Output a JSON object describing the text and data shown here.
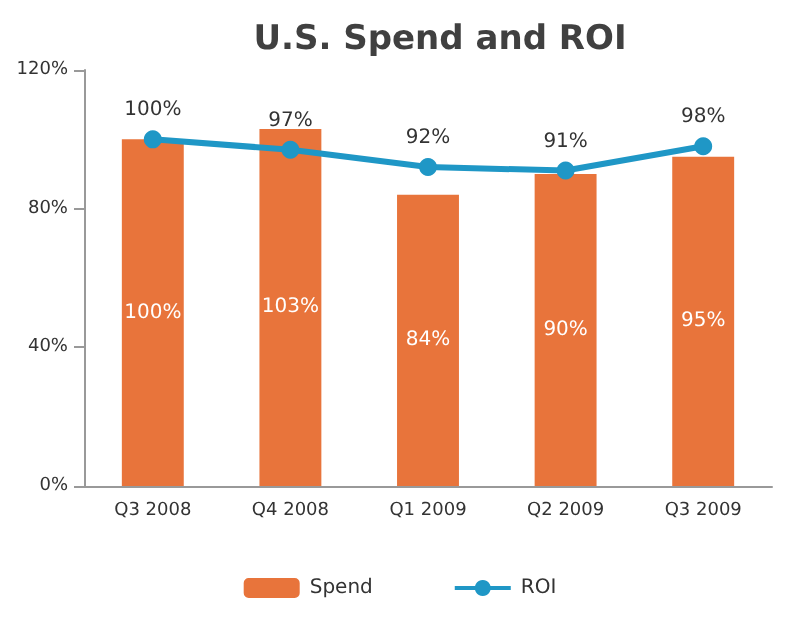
{
  "chart_data": {
    "type": "bar",
    "title": "U.S. Spend and ROI",
    "categories": [
      "Q3 2008",
      "Q4 2008",
      "Q1 2009",
      "Q2 2009",
      "Q3 2009"
    ],
    "series": [
      {
        "name": "Spend",
        "color": "#e8743b",
        "values": [
          100,
          103,
          84,
          90,
          95
        ],
        "value_labels": [
          "100%",
          "103%",
          "84%",
          "90%",
          "95%"
        ]
      },
      {
        "name": "ROI",
        "type": "line",
        "color": "#1f97c6",
        "marker": "circle",
        "values": [
          100,
          97,
          92,
          91,
          98
        ],
        "value_labels": [
          "100%",
          "97%",
          "92%",
          "91%",
          "98%"
        ]
      }
    ],
    "ylim": [
      0,
      120
    ],
    "yticks": [
      {
        "value": 0,
        "label": "0%"
      },
      {
        "value": 40,
        "label": "40%"
      },
      {
        "value": 80,
        "label": "80%"
      },
      {
        "value": 120,
        "label": "120%"
      }
    ],
    "grid": false,
    "legend": "bottom"
  }
}
